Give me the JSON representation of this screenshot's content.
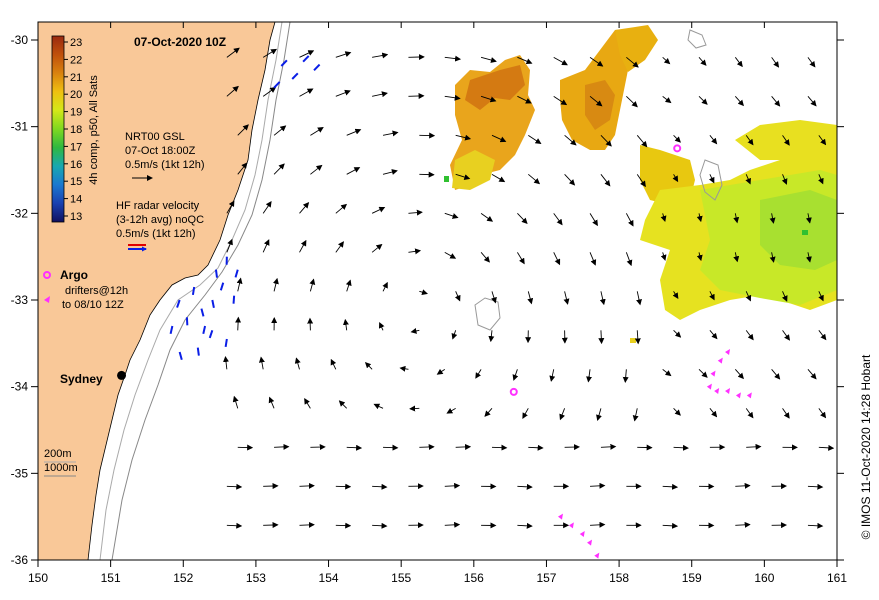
{
  "title": "07-Oct-2020 10Z",
  "colorbar": {
    "label": "4h comp, p50, All Sats",
    "ticks": [
      "23",
      "22",
      "21",
      "20",
      "19",
      "18",
      "17",
      "16",
      "15",
      "14",
      "13"
    ],
    "colors": [
      "#9a2a10",
      "#b5420c",
      "#c9630c",
      "#d9820f",
      "#e8a810",
      "#efd210",
      "#cfe81a",
      "#98e020",
      "#3fbf2a",
      "#19a8a0",
      "#1a6fc8",
      "#1a3ea8",
      "#1a1a80"
    ]
  },
  "gsl_legend": {
    "line1": "NRT00 GSL",
    "line2": "07-Oct 18:00Z",
    "line3": "0.5m/s (1kt 12h)"
  },
  "hf_legend": {
    "line1": "HF radar velocity",
    "line2": "(3-12h avg) noQC",
    "line3": "0.5m/s (1kt 12h)"
  },
  "argo_legend": {
    "label": "Argo",
    "drifters_line1": "drifters@12h",
    "drifters_line2": "to 08/10 12Z"
  },
  "city": {
    "name": "Sydney",
    "lon": 151.15,
    "lat": -33.87
  },
  "depth_legend": {
    "contour1": "200m",
    "contour2": "1000m"
  },
  "credit": "© IMOS 11-Oct-2020 14:28 Hobart",
  "axes": {
    "lon_ticks": [
      "150",
      "151",
      "152",
      "153",
      "154",
      "155",
      "156",
      "157",
      "158",
      "159",
      "160",
      "161"
    ],
    "lat_ticks": [
      "-30",
      "-31",
      "-32",
      "-33",
      "-34",
      "-35",
      "-36"
    ]
  },
  "argo_floats": [
    {
      "lon": 158.8,
      "lat": -31.25
    },
    {
      "lon": 156.55,
      "lat": -34.06
    }
  ],
  "colors": {
    "land": "#f9c898",
    "ocean": "#ffffff",
    "hf_radar": "#0a1ee6",
    "drifter": "#ff30ff",
    "arrow": "#000000",
    "contour": "#999999"
  }
}
